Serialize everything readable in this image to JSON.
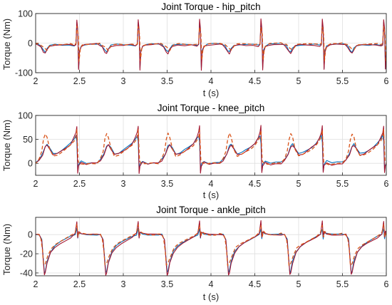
{
  "chart_data": [
    {
      "type": "line",
      "title": "Joint Torque - hip_pitch",
      "xlabel": "t (s)",
      "ylabel": "Torque (Nm)",
      "xlim": [
        2,
        6
      ],
      "ylim": [
        -100,
        100
      ],
      "xticks": [
        "2",
        "2.5",
        "3",
        "3.5",
        "4",
        "4.5",
        "5",
        "5.5",
        "6"
      ],
      "yticks": [
        "-100",
        "0",
        "100"
      ],
      "grid": true,
      "gait_period": 0.7,
      "x_first_cycle": 2.0,
      "series": [
        {
          "color": "#0072BD",
          "style": "solid",
          "cycle": [
            [
              0.0,
              -2
            ],
            [
              0.03,
              -4
            ],
            [
              0.06,
              -10
            ],
            [
              0.09,
              -25
            ],
            [
              0.11,
              -30
            ],
            [
              0.13,
              -18
            ],
            [
              0.16,
              -8
            ],
            [
              0.22,
              -5
            ],
            [
              0.3,
              -6
            ],
            [
              0.38,
              -5
            ],
            [
              0.44,
              -8
            ],
            [
              0.46,
              -3
            ],
            [
              0.47,
              70
            ],
            [
              0.48,
              40
            ],
            [
              0.49,
              -85
            ],
            [
              0.5,
              -25
            ],
            [
              0.52,
              -10
            ],
            [
              0.56,
              -5
            ],
            [
              0.62,
              -3
            ],
            [
              0.7,
              -2
            ]
          ]
        },
        {
          "color": "#A2142F",
          "style": "solid",
          "cycle": [
            [
              0.0,
              -3
            ],
            [
              0.03,
              -6
            ],
            [
              0.06,
              -14
            ],
            [
              0.09,
              -30
            ],
            [
              0.11,
              -35
            ],
            [
              0.13,
              -22
            ],
            [
              0.16,
              -10
            ],
            [
              0.22,
              -6
            ],
            [
              0.3,
              -7
            ],
            [
              0.38,
              -6
            ],
            [
              0.44,
              -10
            ],
            [
              0.46,
              -5
            ],
            [
              0.47,
              80
            ],
            [
              0.48,
              50
            ],
            [
              0.49,
              -90
            ],
            [
              0.5,
              -30
            ],
            [
              0.52,
              -12
            ],
            [
              0.56,
              -6
            ],
            [
              0.62,
              -4
            ],
            [
              0.7,
              -3
            ]
          ]
        },
        {
          "color": "#D95319",
          "style": "dash",
          "cycle": [
            [
              0.0,
              -1
            ],
            [
              0.03,
              -2
            ],
            [
              0.06,
              -6
            ],
            [
              0.1,
              -16
            ],
            [
              0.13,
              -24
            ],
            [
              0.15,
              -14
            ],
            [
              0.18,
              -5
            ],
            [
              0.24,
              -3
            ],
            [
              0.32,
              -4
            ],
            [
              0.4,
              -3
            ],
            [
              0.44,
              -5
            ],
            [
              0.46,
              -2
            ],
            [
              0.47,
              55
            ],
            [
              0.485,
              30
            ],
            [
              0.495,
              -60
            ],
            [
              0.51,
              -18
            ],
            [
              0.53,
              -8
            ],
            [
              0.57,
              -3
            ],
            [
              0.63,
              -2
            ],
            [
              0.7,
              -1
            ]
          ]
        }
      ]
    },
    {
      "type": "line",
      "title": "Joint Torque - knee_pitch",
      "xlabel": "t (s)",
      "ylabel": "Torque (Nm)",
      "xlim": [
        2,
        6
      ],
      "ylim": [
        -25,
        100
      ],
      "xticks": [
        "2",
        "2.5",
        "3",
        "3.5",
        "4",
        "4.5",
        "5",
        "5.5",
        "6"
      ],
      "yticks": [
        "0",
        "50",
        "100"
      ],
      "grid": true,
      "gait_period": 0.7,
      "x_first_cycle": 2.0,
      "series": [
        {
          "color": "#0072BD",
          "style": "solid",
          "cycle": [
            [
              0.0,
              2
            ],
            [
              0.04,
              8
            ],
            [
              0.08,
              20
            ],
            [
              0.11,
              36
            ],
            [
              0.13,
              40
            ],
            [
              0.16,
              32
            ],
            [
              0.2,
              20
            ],
            [
              0.25,
              22
            ],
            [
              0.3,
              28
            ],
            [
              0.35,
              34
            ],
            [
              0.4,
              42
            ],
            [
              0.44,
              52
            ],
            [
              0.46,
              58
            ],
            [
              0.47,
              45
            ],
            [
              0.48,
              -15
            ],
            [
              0.49,
              -2
            ],
            [
              0.52,
              5
            ],
            [
              0.58,
              0
            ],
            [
              0.64,
              2
            ],
            [
              0.7,
              2
            ]
          ]
        },
        {
          "color": "#A2142F",
          "style": "solid",
          "cycle": [
            [
              0.0,
              0
            ],
            [
              0.04,
              6
            ],
            [
              0.08,
              18
            ],
            [
              0.11,
              34
            ],
            [
              0.13,
              38
            ],
            [
              0.16,
              30
            ],
            [
              0.2,
              18
            ],
            [
              0.25,
              20
            ],
            [
              0.3,
              26
            ],
            [
              0.35,
              33
            ],
            [
              0.4,
              40
            ],
            [
              0.44,
              55
            ],
            [
              0.46,
              65
            ],
            [
              0.47,
              78
            ],
            [
              0.48,
              -20
            ],
            [
              0.49,
              -5
            ],
            [
              0.52,
              2
            ],
            [
              0.58,
              -3
            ],
            [
              0.64,
              0
            ],
            [
              0.7,
              0
            ]
          ]
        },
        {
          "color": "#D95319",
          "style": "dash",
          "cycle": [
            [
              0.0,
              0
            ],
            [
              0.04,
              10
            ],
            [
              0.07,
              25
            ],
            [
              0.09,
              50
            ],
            [
              0.11,
              62
            ],
            [
              0.13,
              55
            ],
            [
              0.16,
              30
            ],
            [
              0.2,
              15
            ],
            [
              0.25,
              18
            ],
            [
              0.3,
              24
            ],
            [
              0.35,
              30
            ],
            [
              0.4,
              38
            ],
            [
              0.44,
              48
            ],
            [
              0.46,
              55
            ],
            [
              0.47,
              70
            ],
            [
              0.485,
              5
            ],
            [
              0.5,
              0
            ],
            [
              0.55,
              -2
            ],
            [
              0.62,
              0
            ],
            [
              0.7,
              0
            ]
          ]
        }
      ]
    },
    {
      "type": "line",
      "title": "Joint Torque - ankle_pitch",
      "xlabel": "t (s)",
      "ylabel": "Torque (Nm)",
      "xlim": [
        2,
        6
      ],
      "ylim": [
        -43,
        18
      ],
      "xticks": [
        "2",
        "2.5",
        "3",
        "3.5",
        "4",
        "4.5",
        "5",
        "5.5",
        "6"
      ],
      "yticks": [
        "-40",
        "-20",
        "0"
      ],
      "grid": true,
      "gait_period": 0.7,
      "x_first_cycle": 2.0,
      "series": [
        {
          "color": "#0072BD",
          "style": "solid",
          "cycle": [
            [
              0.0,
              0
            ],
            [
              0.04,
              0
            ],
            [
              0.07,
              -5
            ],
            [
              0.09,
              -28
            ],
            [
              0.1,
              -40
            ],
            [
              0.11,
              -38
            ],
            [
              0.13,
              -28
            ],
            [
              0.17,
              -18
            ],
            [
              0.22,
              -12
            ],
            [
              0.28,
              -8
            ],
            [
              0.34,
              -5
            ],
            [
              0.4,
              -2
            ],
            [
              0.45,
              0
            ],
            [
              0.47,
              6
            ],
            [
              0.48,
              -4
            ],
            [
              0.49,
              2
            ],
            [
              0.52,
              1
            ],
            [
              0.58,
              0
            ],
            [
              0.64,
              0
            ],
            [
              0.7,
              0
            ]
          ]
        },
        {
          "color": "#A2142F",
          "style": "solid",
          "cycle": [
            [
              0.0,
              0
            ],
            [
              0.04,
              0
            ],
            [
              0.07,
              -6
            ],
            [
              0.09,
              -30
            ],
            [
              0.1,
              -42
            ],
            [
              0.11,
              -40
            ],
            [
              0.13,
              -30
            ],
            [
              0.17,
              -19
            ],
            [
              0.22,
              -13
            ],
            [
              0.28,
              -9
            ],
            [
              0.34,
              -6
            ],
            [
              0.4,
              -3
            ],
            [
              0.45,
              1
            ],
            [
              0.47,
              14
            ],
            [
              0.48,
              -3
            ],
            [
              0.49,
              3
            ],
            [
              0.52,
              1
            ],
            [
              0.58,
              0
            ],
            [
              0.64,
              0
            ],
            [
              0.7,
              0
            ]
          ]
        },
        {
          "color": "#D95319",
          "style": "dash",
          "cycle": [
            [
              0.0,
              1
            ],
            [
              0.04,
              0
            ],
            [
              0.06,
              -4
            ],
            [
              0.08,
              -18
            ],
            [
              0.09,
              -32
            ],
            [
              0.11,
              -30
            ],
            [
              0.14,
              -22
            ],
            [
              0.18,
              -14
            ],
            [
              0.23,
              -10
            ],
            [
              0.29,
              -7
            ],
            [
              0.35,
              -4
            ],
            [
              0.41,
              -1
            ],
            [
              0.45,
              2
            ],
            [
              0.47,
              10
            ],
            [
              0.485,
              -2
            ],
            [
              0.5,
              3
            ],
            [
              0.53,
              1
            ],
            [
              0.59,
              0
            ],
            [
              0.65,
              0
            ],
            [
              0.7,
              1
            ]
          ]
        }
      ]
    }
  ]
}
